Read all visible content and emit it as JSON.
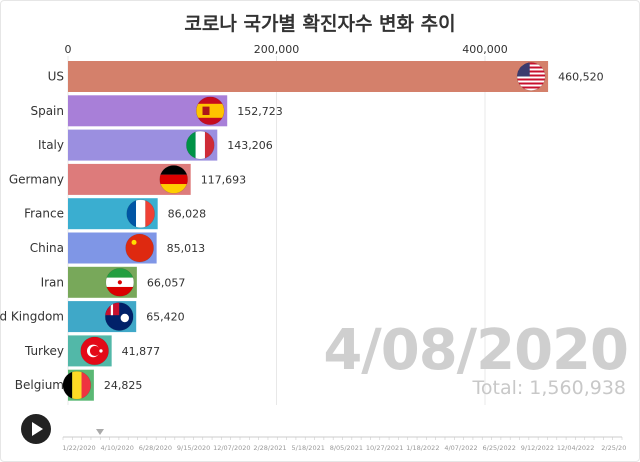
{
  "title": "코로나 국가별 확진자수 변화 추이",
  "current_date": "4/08/2020",
  "total_label": "Total:",
  "total_value": "1,560,938",
  "play_icon": "play-icon",
  "timeline": {
    "labels": [
      "1/22/2020",
      "4/10/2020",
      "6/28/2020",
      "9/15/2020",
      "12/07/2020",
      "2/28/2021",
      "5/18/2021",
      "8/05/2021",
      "10/27/2021",
      "1/18/2022",
      "4/07/2022",
      "6/25/2022",
      "9/12/2022",
      "12/04/2022",
      "2/25/20"
    ],
    "position": "4/08/2020"
  },
  "chart_data": {
    "type": "bar",
    "orientation": "horizontal",
    "title": "코로나 국가별 확진자수 변화 추이",
    "xlim": [
      0,
      540000
    ],
    "xticks": [
      0,
      200000,
      400000
    ],
    "xtick_labels": [
      "0",
      "200,000",
      "400,000"
    ],
    "grid": true,
    "categories": [
      "US",
      "Spain",
      "Italy",
      "Germany",
      "France",
      "China",
      "Iran",
      "d Kingdom",
      "Turkey",
      "Belgium"
    ],
    "values": [
      460520,
      152723,
      143206,
      117693,
      86028,
      85013,
      66057,
      65420,
      41877,
      24825
    ],
    "value_labels": [
      "460,520",
      "152,723",
      "143,206",
      "117,693",
      "86,028",
      "85,013",
      "66,057",
      "65,420",
      "41,877",
      "24,825"
    ],
    "colors": [
      "#d4806b",
      "#a87fd8",
      "#9b8fe0",
      "#dd7b7b",
      "#3aaed0",
      "#7f96e6",
      "#78a85a",
      "#3fa8c8",
      "#52b8a8",
      "#5ab874"
    ],
    "flags": [
      "us-flag-icon",
      "spain-flag-icon",
      "italy-flag-icon",
      "germany-flag-icon",
      "france-flag-icon",
      "china-flag-icon",
      "iran-flag-icon",
      "uk-flag-icon",
      "turkey-flag-icon",
      "belgium-flag-icon"
    ]
  }
}
